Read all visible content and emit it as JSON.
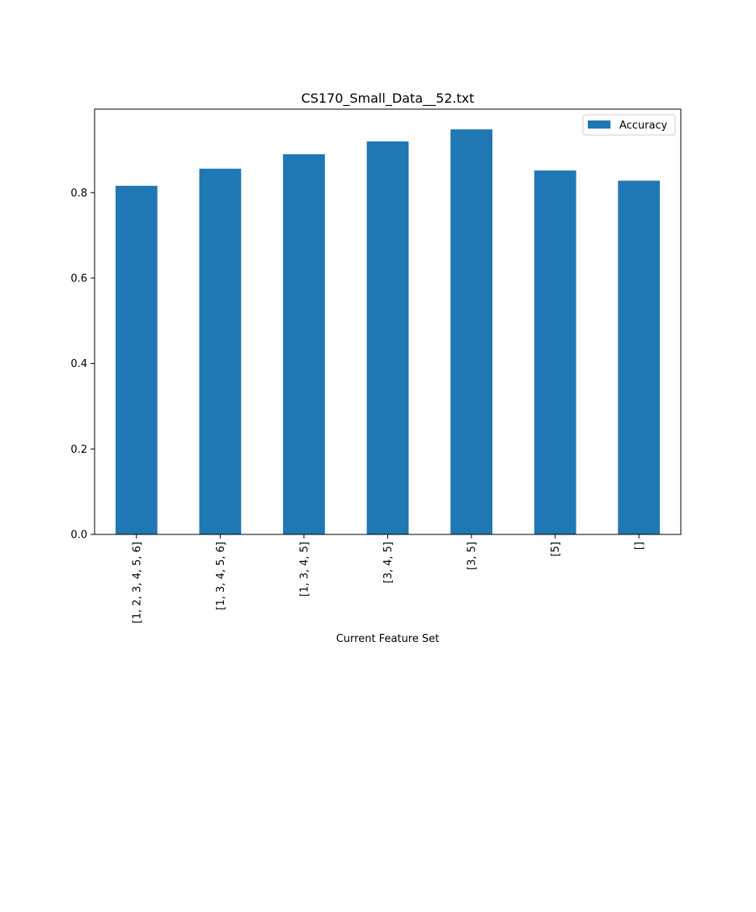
{
  "chart_data": {
    "type": "bar",
    "title": "CS170_Small_Data__52.txt",
    "xlabel": "Current Feature Set",
    "ylabel": "",
    "categories": [
      "[1, 2, 3, 4, 5, 6]",
      "[1, 3, 4, 5, 6]",
      "[1, 3, 4, 5]",
      "[3, 4, 5]",
      "[3, 5]",
      "[5]",
      "[]"
    ],
    "series": [
      {
        "name": "Accuracy",
        "color": "#1f77b4",
        "values": [
          0.816,
          0.856,
          0.89,
          0.92,
          0.948,
          0.852,
          0.828
        ]
      }
    ],
    "ylim": [
      0,
      0.9954
    ],
    "yticks": [
      0.0,
      0.2,
      0.4,
      0.6,
      0.8
    ],
    "ytick_labels": [
      "0.0",
      "0.2",
      "0.4",
      "0.6",
      "0.8"
    ],
    "legend": {
      "position": "upper-right",
      "entries": [
        "Accuracy"
      ]
    },
    "grid": false,
    "x_tick_rotation": "vertical"
  }
}
